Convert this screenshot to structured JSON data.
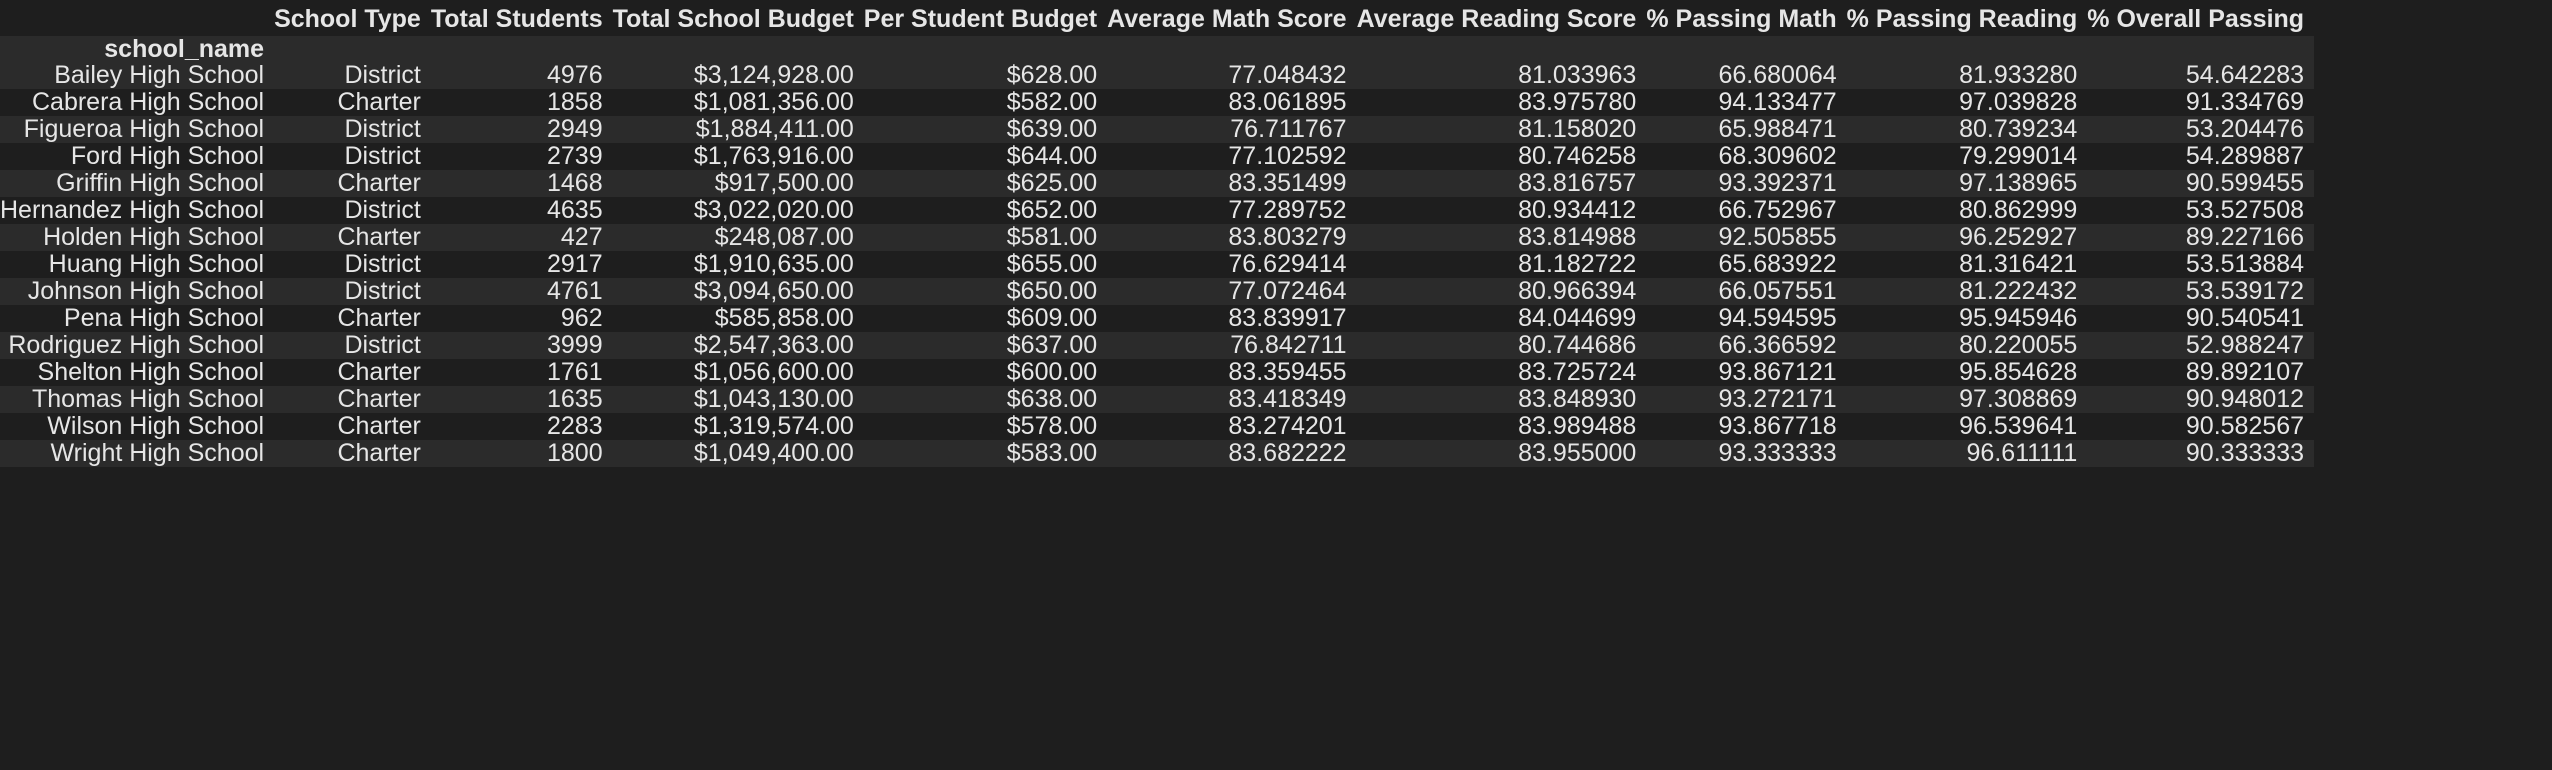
{
  "table": {
    "index_name": "school_name",
    "columns": [
      "School Type",
      "Total Students",
      "Total School Budget",
      "Per Student Budget",
      "Average Math Score",
      "Average Reading Score",
      "% Passing Math",
      "% Passing Reading",
      "% Overall Passing"
    ],
    "rows": [
      {
        "name": "Bailey High School",
        "cells": [
          "District",
          "4976",
          "$3,124,928.00",
          "$628.00",
          "77.048432",
          "81.033963",
          "66.680064",
          "81.933280",
          "54.642283"
        ]
      },
      {
        "name": "Cabrera High School",
        "cells": [
          "Charter",
          "1858",
          "$1,081,356.00",
          "$582.00",
          "83.061895",
          "83.975780",
          "94.133477",
          "97.039828",
          "91.334769"
        ]
      },
      {
        "name": "Figueroa High School",
        "cells": [
          "District",
          "2949",
          "$1,884,411.00",
          "$639.00",
          "76.711767",
          "81.158020",
          "65.988471",
          "80.739234",
          "53.204476"
        ]
      },
      {
        "name": "Ford High School",
        "cells": [
          "District",
          "2739",
          "$1,763,916.00",
          "$644.00",
          "77.102592",
          "80.746258",
          "68.309602",
          "79.299014",
          "54.289887"
        ]
      },
      {
        "name": "Griffin High School",
        "cells": [
          "Charter",
          "1468",
          "$917,500.00",
          "$625.00",
          "83.351499",
          "83.816757",
          "93.392371",
          "97.138965",
          "90.599455"
        ]
      },
      {
        "name": "Hernandez High School",
        "cells": [
          "District",
          "4635",
          "$3,022,020.00",
          "$652.00",
          "77.289752",
          "80.934412",
          "66.752967",
          "80.862999",
          "53.527508"
        ]
      },
      {
        "name": "Holden High School",
        "cells": [
          "Charter",
          "427",
          "$248,087.00",
          "$581.00",
          "83.803279",
          "83.814988",
          "92.505855",
          "96.252927",
          "89.227166"
        ]
      },
      {
        "name": "Huang High School",
        "cells": [
          "District",
          "2917",
          "$1,910,635.00",
          "$655.00",
          "76.629414",
          "81.182722",
          "65.683922",
          "81.316421",
          "53.513884"
        ]
      },
      {
        "name": "Johnson High School",
        "cells": [
          "District",
          "4761",
          "$3,094,650.00",
          "$650.00",
          "77.072464",
          "80.966394",
          "66.057551",
          "81.222432",
          "53.539172"
        ]
      },
      {
        "name": "Pena High School",
        "cells": [
          "Charter",
          "962",
          "$585,858.00",
          "$609.00",
          "83.839917",
          "84.044699",
          "94.594595",
          "95.945946",
          "90.540541"
        ]
      },
      {
        "name": "Rodriguez High School",
        "cells": [
          "District",
          "3999",
          "$2,547,363.00",
          "$637.00",
          "76.842711",
          "80.744686",
          "66.366592",
          "80.220055",
          "52.988247"
        ]
      },
      {
        "name": "Shelton High School",
        "cells": [
          "Charter",
          "1761",
          "$1,056,600.00",
          "$600.00",
          "83.359455",
          "83.725724",
          "93.867121",
          "95.854628",
          "89.892107"
        ]
      },
      {
        "name": "Thomas High School",
        "cells": [
          "Charter",
          "1635",
          "$1,043,130.00",
          "$638.00",
          "83.418349",
          "83.848930",
          "93.272171",
          "97.308869",
          "90.948012"
        ]
      },
      {
        "name": "Wilson High School",
        "cells": [
          "Charter",
          "2283",
          "$1,319,574.00",
          "$578.00",
          "83.274201",
          "83.989488",
          "93.867718",
          "96.539641",
          "90.582567"
        ]
      },
      {
        "name": "Wright High School",
        "cells": [
          "Charter",
          "1800",
          "$1,049,400.00",
          "$583.00",
          "83.682222",
          "83.955000",
          "93.333333",
          "96.611111",
          "90.333333"
        ]
      }
    ]
  },
  "colors": {
    "background": "#1e1e1e",
    "stripe": "#2b2b2b",
    "text": "#e6e6e6"
  }
}
